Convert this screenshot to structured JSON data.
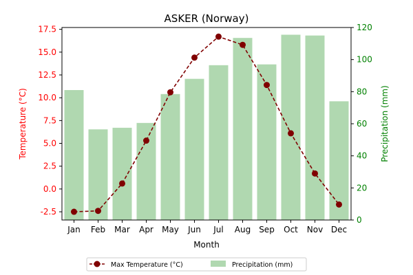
{
  "chart_data": {
    "type": "bar",
    "title": "ASKER (Norway)",
    "xlabel": "Month",
    "ylabel_left": "Temperature (°C)",
    "ylabel_right": "Precipitation (mm)",
    "categories": [
      "Jan",
      "Feb",
      "Mar",
      "Apr",
      "May",
      "Jun",
      "Jul",
      "Aug",
      "Sep",
      "Oct",
      "Nov",
      "Dec"
    ],
    "ylim_left": [
      -3.4,
      17.7
    ],
    "ylim_right": [
      0,
      120
    ],
    "yticks_left": [
      "-2.5",
      "0.0",
      "2.5",
      "5.0",
      "7.5",
      "10.0",
      "12.5",
      "15.0",
      "17.5"
    ],
    "yticks_right": [
      "0",
      "20",
      "40",
      "60",
      "80",
      "100",
      "120"
    ],
    "series": [
      {
        "name": "Max Temperature (°C)",
        "type": "line",
        "axis": "left",
        "color": "#800000",
        "values": [
          -2.5,
          -2.4,
          0.6,
          5.3,
          10.6,
          14.4,
          16.7,
          15.8,
          11.4,
          6.1,
          1.7,
          -1.7
        ]
      },
      {
        "name": "Precipitation (mm)",
        "type": "bar",
        "axis": "right",
        "color": "#b0d8b0",
        "values": [
          81,
          56.5,
          57.5,
          60.5,
          78.5,
          88,
          96.5,
          113.5,
          97,
          115.5,
          115,
          74
        ]
      }
    ],
    "colors": {
      "left_axis": "#ff0000",
      "right_axis": "#008000"
    },
    "grid": false,
    "legend_position": "bottom-center"
  }
}
